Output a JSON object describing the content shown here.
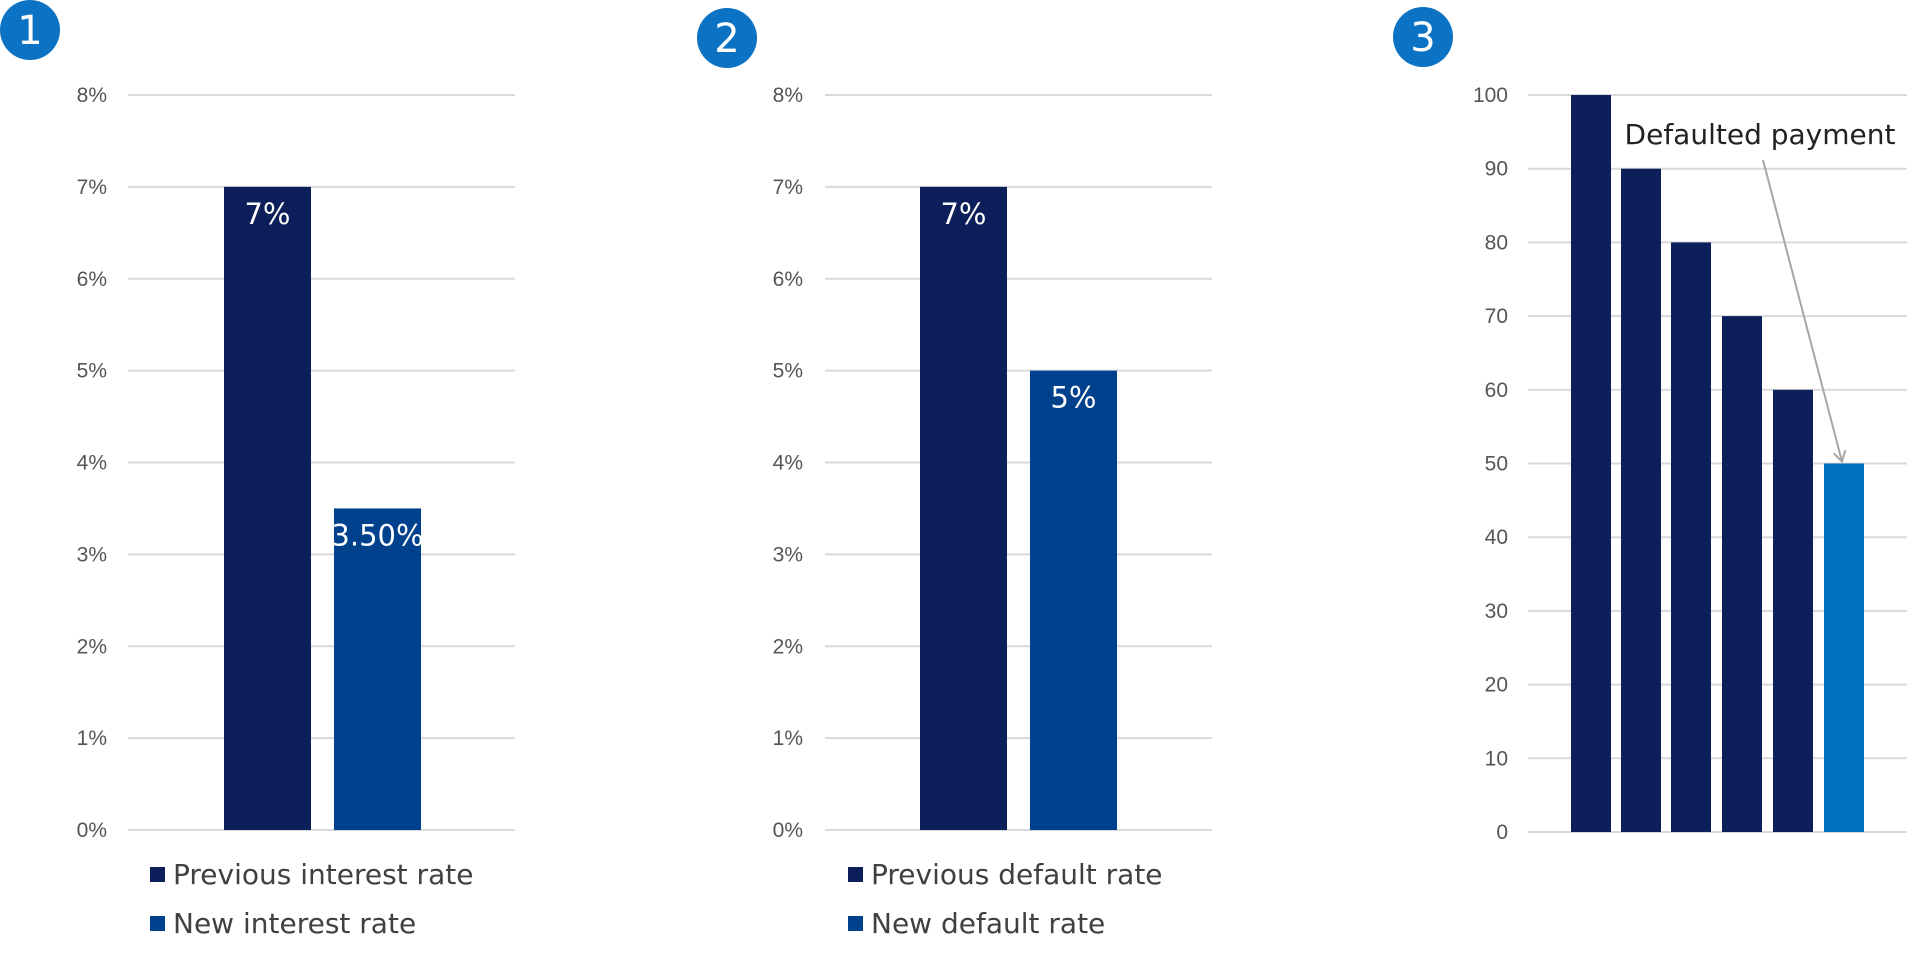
{
  "chart_data": [
    {
      "type": "bar",
      "badge": "1",
      "categories": [
        "Previous interest rate",
        "New interest rate"
      ],
      "values": [
        7,
        3.5
      ],
      "data_labels": [
        "7%",
        "3.50%"
      ],
      "ylim": [
        0,
        8
      ],
      "ytick_labels": [
        "0%",
        "1%",
        "2%",
        "3%",
        "4%",
        "5%",
        "6%",
        "7%",
        "8%"
      ],
      "colors": [
        "#0d1f5a",
        "#00418d"
      ],
      "grid": true,
      "legend": {
        "position": "bottom",
        "entries": [
          "Previous interest rate",
          "New interest rate"
        ]
      }
    },
    {
      "type": "bar",
      "badge": "2",
      "categories": [
        "Previous default rate",
        "New default rate"
      ],
      "values": [
        7,
        5
      ],
      "data_labels": [
        "7%",
        "5%"
      ],
      "ylim": [
        0,
        8
      ],
      "ytick_labels": [
        "0%",
        "1%",
        "2%",
        "3%",
        "4%",
        "5%",
        "6%",
        "7%",
        "8%"
      ],
      "colors": [
        "#0d1f5a",
        "#00418d"
      ],
      "grid": true,
      "legend": {
        "position": "bottom",
        "entries": [
          "Previous default rate",
          "New default rate"
        ]
      }
    },
    {
      "type": "bar",
      "badge": "3",
      "values": [
        100,
        90,
        80,
        70,
        60,
        50
      ],
      "ylim": [
        0,
        100
      ],
      "ytick_labels": [
        "0",
        "10",
        "20",
        "30",
        "40",
        "50",
        "60",
        "70",
        "80",
        "90",
        "100"
      ],
      "colors": [
        "#0d1f5a",
        "#0d1f5a",
        "#0d1f5a",
        "#0d1f5a",
        "#0d1f5a",
        "#0070c0"
      ],
      "grid": true,
      "annotation": {
        "text": "Defaulted payment",
        "target_index": 5
      }
    }
  ]
}
